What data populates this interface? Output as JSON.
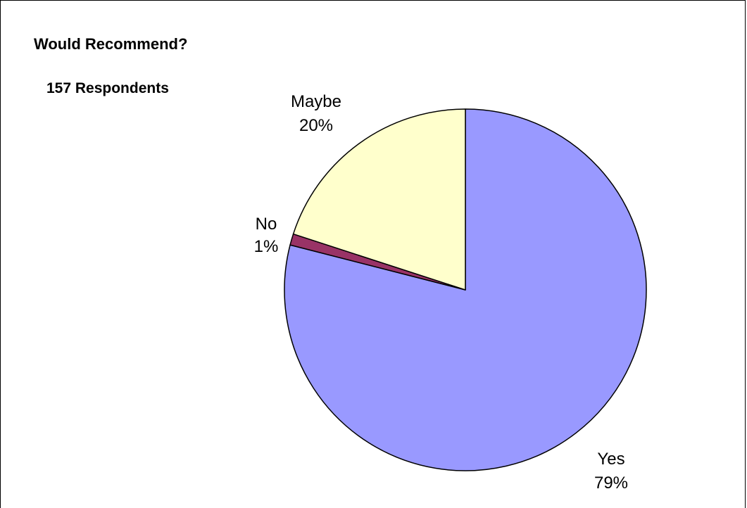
{
  "chart_data": {
    "type": "pie",
    "title": "Would Recommend?",
    "subtitle": "157 Respondents",
    "slices": [
      {
        "label": "Yes",
        "value": 79,
        "value_label": "79%",
        "color": "#9999ff"
      },
      {
        "label": "No",
        "value": 1,
        "value_label": "1%",
        "color": "#993366"
      },
      {
        "label": "Maybe",
        "value": 20,
        "value_label": "20%",
        "color": "#ffffcc"
      }
    ],
    "start_angle": "12 o'clock",
    "direction": "clockwise",
    "legend": "none",
    "edge_color": "#000000"
  }
}
